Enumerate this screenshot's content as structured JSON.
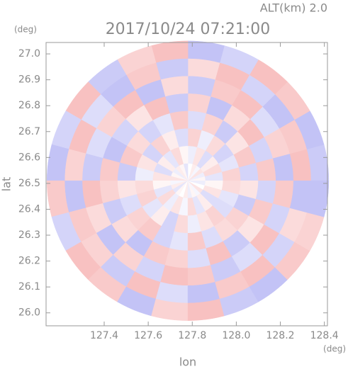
{
  "chart_data": {
    "type": "polar-heatmap",
    "title": "2017/10/24 07:21:00",
    "subtitle": "ALT(km)  2.0",
    "x_label": "lon",
    "y_label": "lat",
    "x_unit": "(deg)",
    "y_unit": "(deg)",
    "xlim": [
      127.136,
      128.414
    ],
    "ylim": [
      25.95,
      27.044
    ],
    "xticks": [
      127.4,
      127.6,
      127.8,
      {
        "value": 128.0,
        "label": "128.0"
      },
      128.2,
      128.4
    ],
    "yticks": [
      {
        "value": 26.0,
        "label": "26.0"
      },
      26.1,
      26.2,
      26.3,
      26.4,
      26.5,
      26.6,
      26.7,
      26.8,
      26.9,
      {
        "value": 27.0,
        "label": "27.0"
      }
    ],
    "center": [
      127.78,
      26.51
    ],
    "radius": [
      0.64,
      0.54
    ],
    "colors": {
      "negative": "#a9a9f2",
      "positive": "#f5a6a6"
    },
    "values": [
      [
        0.1,
        -0.2,
        0.3,
        -0.1,
        0.2,
        0.0,
        -0.3,
        0.1,
        0.2,
        -0.2,
        0.1,
        0.3,
        -0.1,
        0.2,
        -0.3,
        0.1,
        0.0,
        0.2,
        -0.2,
        0.1,
        -0.1,
        0.3,
        0.0,
        -0.2
      ],
      [
        -0.3,
        0.4,
        0.2,
        -0.4,
        0.3,
        -0.2,
        0.1,
        0.4,
        -0.3,
        0.2,
        -0.4,
        0.3,
        0.1,
        -0.3,
        0.4,
        -0.2,
        0.3,
        -0.1,
        0.4,
        -0.3,
        0.2,
        -0.4,
        0.3,
        0.1
      ],
      [
        0.5,
        -0.3,
        -0.5,
        0.4,
        -0.2,
        0.5,
        -0.4,
        0.2,
        0.5,
        -0.5,
        0.3,
        -0.2,
        0.4,
        0.5,
        -0.3,
        0.2,
        -0.5,
        0.4,
        -0.2,
        0.3,
        0.5,
        -0.4,
        -0.3,
        0.4
      ],
      [
        -0.5,
        0.6,
        0.3,
        -0.6,
        0.5,
        -0.4,
        0.6,
        -0.3,
        -0.5,
        0.4,
        0.6,
        -0.6,
        0.3,
        -0.4,
        0.5,
        0.6,
        -0.5,
        -0.3,
        0.6,
        -0.4,
        0.4,
        0.5,
        -0.6,
        0.3
      ],
      [
        0.6,
        -0.5,
        0.7,
        0.4,
        -0.7,
        0.5,
        -0.6,
        0.7,
        0.3,
        -0.5,
        -0.7,
        0.6,
        0.5,
        -0.6,
        0.4,
        -0.7,
        0.6,
        0.5,
        -0.4,
        0.7,
        -0.6,
        0.3,
        0.6,
        -0.5
      ],
      [
        -0.7,
        0.5,
        -0.4,
        0.7,
        0.6,
        -0.6,
        0.4,
        -0.7,
        0.7,
        0.5,
        -0.4,
        -0.6,
        0.7,
        0.4,
        -0.7,
        0.5,
        -0.5,
        0.7,
        0.6,
        -0.6,
        -0.4,
        0.7,
        -0.5,
        0.6
      ],
      [
        0.7,
        0.6,
        -0.7,
        -0.5,
        0.7,
        0.4,
        -0.6,
        0.6,
        -0.7,
        -0.4,
        0.7,
        0.5,
        -0.7,
        0.6,
        0.5,
        -0.6,
        0.7,
        -0.4,
        -0.7,
        0.6,
        0.7,
        -0.5,
        0.4,
        -0.7
      ],
      [
        -0.6,
        -0.7,
        0.6,
        0.7,
        -0.5,
        -0.7,
        0.7,
        0.5,
        -0.6,
        0.7,
        -0.5,
        -0.7,
        0.6,
        -0.5,
        0.7,
        0.6,
        -0.7,
        0.5,
        0.7,
        -0.6,
        -0.7,
        0.6,
        0.5,
        -0.7
      ]
    ]
  }
}
